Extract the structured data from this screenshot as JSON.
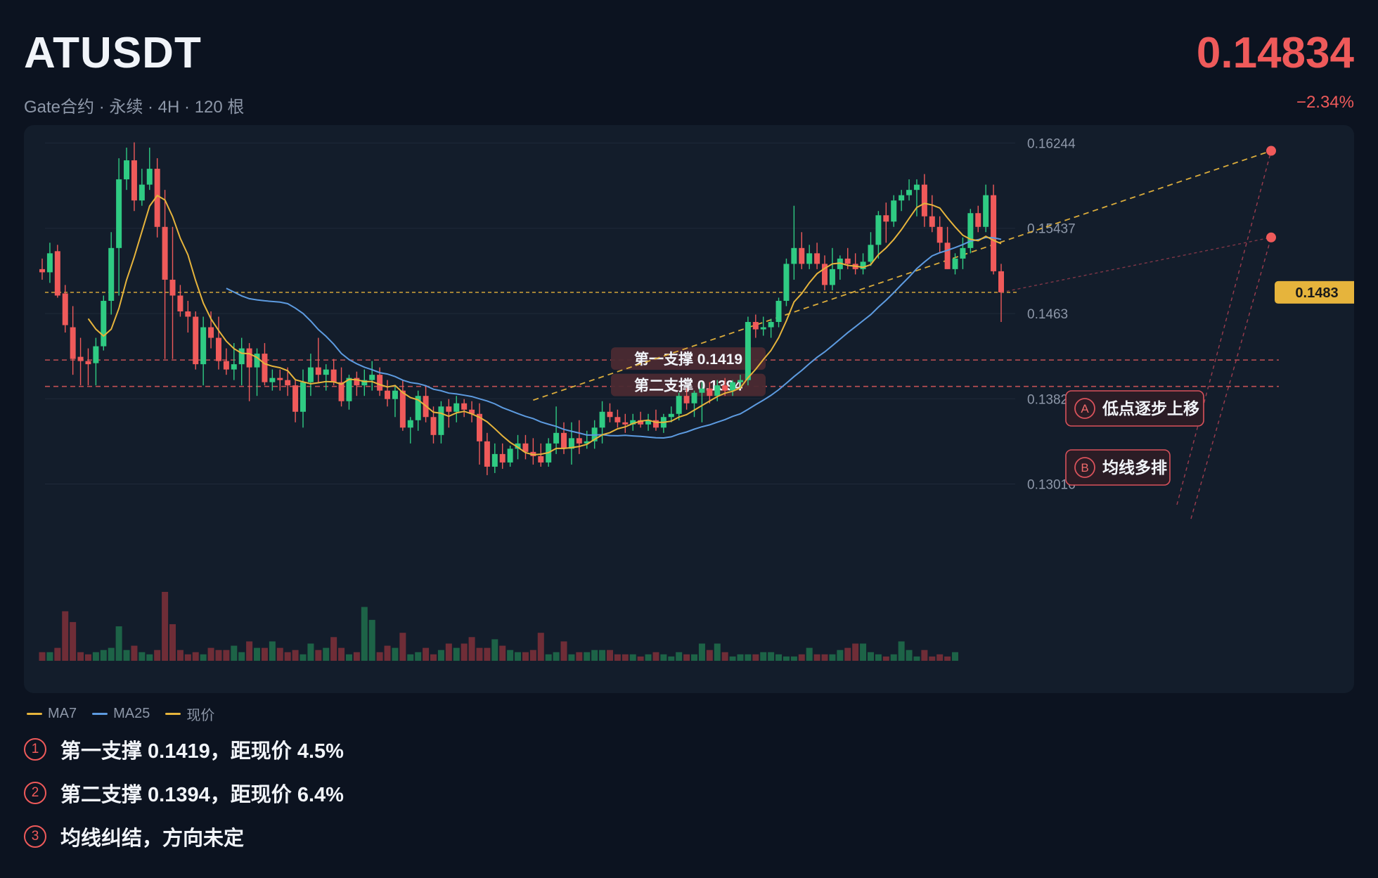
{
  "header": {
    "symbol": "ATUSDT",
    "subtitle": "Gate合约 · 永续 · 4H · 120 根",
    "price": "0.14834",
    "change": "−2.34%"
  },
  "colors": {
    "up": "#2fcb83",
    "down": "#ef5a5a",
    "ma7": "#e6b43c",
    "ma25": "#5d9be0",
    "current_price": "#e6b43c",
    "support": "#e05a5a",
    "trendline": "#e6b43c"
  },
  "legend": [
    {
      "label": "MA7",
      "color": "#e6b43c"
    },
    {
      "label": "MA25",
      "color": "#5d9be0"
    },
    {
      "label": "现价",
      "color": "#e6b43c"
    }
  ],
  "notes": [
    {
      "num": "1",
      "text": "第一支撑 0.1419，距现价 4.5%"
    },
    {
      "num": "2",
      "text": "第二支撑 0.1394，距现价 6.4%"
    },
    {
      "num": "3",
      "text": "均线纠结，方向未定"
    }
  ],
  "chart_data": {
    "type": "candlestick",
    "bars": 120,
    "y_ticks": [
      "0.16244",
      "0.15437",
      "0.1463",
      "0.13823",
      "0.13016"
    ],
    "ylim": [
      0.1282,
      0.1636
    ],
    "current_price": {
      "value": 0.1483,
      "label": "0.1483"
    },
    "supports": [
      {
        "label": "第一支撑 0.1419",
        "value": 0.1419
      },
      {
        "label": "第二支撑 0.1394",
        "value": 0.1394
      }
    ],
    "annotations": [
      {
        "letter": "A",
        "text": "低点逐步上移"
      },
      {
        "letter": "B",
        "text": "均线多排"
      }
    ],
    "trendline": {
      "from": {
        "bar": 64,
        "price": 0.1381
      },
      "to": {
        "bar": 119,
        "price": 0.1617
      }
    },
    "close_markers": [
      0.1617,
      0.1535
    ],
    "candles": [
      [
        0.1505,
        0.1515,
        0.1495,
        0.1502
      ],
      [
        0.1502,
        0.153,
        0.1492,
        0.152
      ],
      [
        0.1522,
        0.1528,
        0.1478,
        0.148
      ],
      [
        0.1482,
        0.149,
        0.1445,
        0.1452
      ],
      [
        0.145,
        0.147,
        0.1405,
        0.142
      ],
      [
        0.1422,
        0.144,
        0.1395,
        0.1418
      ],
      [
        0.1418,
        0.143,
        0.1395,
        0.1415
      ],
      [
        0.1416,
        0.144,
        0.1395,
        0.1432
      ],
      [
        0.1432,
        0.148,
        0.1428,
        0.1475
      ],
      [
        0.1475,
        0.154,
        0.1462,
        0.1525
      ],
      [
        0.1525,
        0.161,
        0.148,
        0.159
      ],
      [
        0.159,
        0.162,
        0.158,
        0.1608
      ],
      [
        0.1608,
        0.1625,
        0.156,
        0.157
      ],
      [
        0.157,
        0.16,
        0.1565,
        0.1585
      ],
      [
        0.1585,
        0.162,
        0.158,
        0.16
      ],
      [
        0.16,
        0.161,
        0.1535,
        0.1545
      ],
      [
        0.1545,
        0.158,
        0.142,
        0.1495
      ],
      [
        0.1495,
        0.1545,
        0.142,
        0.148
      ],
      [
        0.148,
        0.149,
        0.146,
        0.1465
      ],
      [
        0.1465,
        0.1475,
        0.1445,
        0.146
      ],
      [
        0.146,
        0.1465,
        0.141,
        0.1415
      ],
      [
        0.1415,
        0.146,
        0.1395,
        0.145
      ],
      [
        0.145,
        0.1465,
        0.143,
        0.144
      ],
      [
        0.144,
        0.146,
        0.141,
        0.1418
      ],
      [
        0.1418,
        0.143,
        0.1405,
        0.141
      ],
      [
        0.141,
        0.1435,
        0.14,
        0.1415
      ],
      [
        0.1415,
        0.144,
        0.1395,
        0.143
      ],
      [
        0.143,
        0.1435,
        0.138,
        0.1412
      ],
      [
        0.1412,
        0.143,
        0.1385,
        0.1425
      ],
      [
        0.1425,
        0.1435,
        0.1395,
        0.1398
      ],
      [
        0.1398,
        0.141,
        0.139,
        0.1402
      ],
      [
        0.1402,
        0.141,
        0.139,
        0.14
      ],
      [
        0.14,
        0.1412,
        0.1385,
        0.1395
      ],
      [
        0.1395,
        0.14,
        0.136,
        0.137
      ],
      [
        0.137,
        0.141,
        0.1355,
        0.1398
      ],
      [
        0.1398,
        0.1425,
        0.1385,
        0.1412
      ],
      [
        0.1412,
        0.144,
        0.1398,
        0.1405
      ],
      [
        0.1405,
        0.1415,
        0.139,
        0.141
      ],
      [
        0.141,
        0.142,
        0.1395,
        0.1398
      ],
      [
        0.1398,
        0.1412,
        0.1375,
        0.138
      ],
      [
        0.138,
        0.1405,
        0.1372,
        0.1402
      ],
      [
        0.1402,
        0.1408,
        0.1385,
        0.1395
      ],
      [
        0.1395,
        0.141,
        0.1385,
        0.14
      ],
      [
        0.14,
        0.1418,
        0.139,
        0.1405
      ],
      [
        0.1405,
        0.1412,
        0.1385,
        0.139
      ],
      [
        0.139,
        0.14,
        0.1375,
        0.1382
      ],
      [
        0.1382,
        0.1395,
        0.1365,
        0.139
      ],
      [
        0.139,
        0.14,
        0.1352,
        0.1355
      ],
      [
        0.1355,
        0.1365,
        0.134,
        0.1362
      ],
      [
        0.1362,
        0.139,
        0.1352,
        0.1385
      ],
      [
        0.1385,
        0.1395,
        0.136,
        0.1365
      ],
      [
        0.1365,
        0.1375,
        0.134,
        0.1348
      ],
      [
        0.1348,
        0.138,
        0.134,
        0.1375
      ],
      [
        0.1375,
        0.1382,
        0.1355,
        0.137
      ],
      [
        0.137,
        0.1385,
        0.136,
        0.1378
      ],
      [
        0.1378,
        0.1382,
        0.1365,
        0.1372
      ],
      [
        0.1372,
        0.138,
        0.136,
        0.1368
      ],
      [
        0.1368,
        0.1378,
        0.132,
        0.1342
      ],
      [
        0.1342,
        0.135,
        0.131,
        0.1318
      ],
      [
        0.1318,
        0.134,
        0.1312,
        0.133
      ],
      [
        0.133,
        0.134,
        0.1316,
        0.1322
      ],
      [
        0.1322,
        0.1338,
        0.1318,
        0.1335
      ],
      [
        0.1335,
        0.1348,
        0.1325,
        0.134
      ],
      [
        0.134,
        0.1348,
        0.1325,
        0.1332
      ],
      [
        0.1332,
        0.1345,
        0.132,
        0.1328
      ],
      [
        0.1328,
        0.134,
        0.1318,
        0.1322
      ],
      [
        0.1322,
        0.1345,
        0.1318,
        0.134
      ],
      [
        0.134,
        0.1375,
        0.133,
        0.135
      ],
      [
        0.135,
        0.136,
        0.133,
        0.1335
      ],
      [
        0.1335,
        0.136,
        0.132,
        0.1345
      ],
      [
        0.1345,
        0.1362,
        0.133,
        0.134
      ],
      [
        0.134,
        0.1352,
        0.1335,
        0.1342
      ],
      [
        0.1342,
        0.1362,
        0.1335,
        0.1355
      ],
      [
        0.1355,
        0.138,
        0.134,
        0.137
      ],
      [
        0.137,
        0.1378,
        0.136,
        0.1365
      ],
      [
        0.1365,
        0.1372,
        0.1355,
        0.136
      ],
      [
        0.136,
        0.1368,
        0.135,
        0.1358
      ],
      [
        0.1358,
        0.1368,
        0.1352,
        0.1362
      ],
      [
        0.1362,
        0.137,
        0.1355,
        0.1358
      ],
      [
        0.1358,
        0.1368,
        0.1352,
        0.1362
      ],
      [
        0.1362,
        0.1372,
        0.1352,
        0.1355
      ],
      [
        0.1355,
        0.1368,
        0.135,
        0.1365
      ],
      [
        0.1365,
        0.1375,
        0.136,
        0.1368
      ],
      [
        0.1368,
        0.1388,
        0.1362,
        0.1385
      ],
      [
        0.1385,
        0.1392,
        0.1372,
        0.1378
      ],
      [
        0.1378,
        0.139,
        0.1365,
        0.1388
      ],
      [
        0.1388,
        0.1398,
        0.136,
        0.1392
      ],
      [
        0.1392,
        0.1398,
        0.1378,
        0.1385
      ],
      [
        0.1385,
        0.14,
        0.138,
        0.1395
      ],
      [
        0.1395,
        0.1402,
        0.1385,
        0.139
      ],
      [
        0.139,
        0.14,
        0.1385,
        0.1398
      ],
      [
        0.1398,
        0.1405,
        0.1392,
        0.14
      ],
      [
        0.14,
        0.146,
        0.1395,
        0.1455
      ],
      [
        0.1455,
        0.1462,
        0.144,
        0.1448
      ],
      [
        0.1448,
        0.146,
        0.1442,
        0.145
      ],
      [
        0.145,
        0.1458,
        0.144,
        0.1455
      ],
      [
        0.1455,
        0.1478,
        0.145,
        0.1475
      ],
      [
        0.1475,
        0.1515,
        0.147,
        0.151
      ],
      [
        0.151,
        0.1565,
        0.1495,
        0.1525
      ],
      [
        0.1525,
        0.154,
        0.1505,
        0.151
      ],
      [
        0.151,
        0.1528,
        0.1505,
        0.152
      ],
      [
        0.152,
        0.153,
        0.1505,
        0.151
      ],
      [
        0.151,
        0.1518,
        0.1485,
        0.149
      ],
      [
        0.149,
        0.1525,
        0.1485,
        0.1505
      ],
      [
        0.1505,
        0.1518,
        0.1495,
        0.1515
      ],
      [
        0.1515,
        0.1525,
        0.1505,
        0.151
      ],
      [
        0.151,
        0.152,
        0.15,
        0.1505
      ],
      [
        0.1505,
        0.152,
        0.15,
        0.1512
      ],
      [
        0.1512,
        0.154,
        0.1508,
        0.1528
      ],
      [
        0.1528,
        0.156,
        0.1515,
        0.1556
      ],
      [
        0.1556,
        0.1568,
        0.153,
        0.155
      ],
      [
        0.155,
        0.1575,
        0.1545,
        0.157
      ],
      [
        0.157,
        0.158,
        0.156,
        0.1575
      ],
      [
        0.1575,
        0.159,
        0.157,
        0.158
      ],
      [
        0.158,
        0.159,
        0.1555,
        0.1585
      ],
      [
        0.1585,
        0.1595,
        0.1545,
        0.1555
      ],
      [
        0.1555,
        0.1575,
        0.154,
        0.1545
      ],
      [
        0.1545,
        0.1555,
        0.152,
        0.153
      ],
      [
        0.153,
        0.1545,
        0.1505,
        0.1505
      ],
      [
        0.1505,
        0.152,
        0.15,
        0.1515
      ],
      [
        0.1515,
        0.1535,
        0.1505,
        0.1525
      ],
      [
        0.1525,
        0.1562,
        0.152,
        0.1558
      ],
      [
        0.1558,
        0.1565,
        0.154,
        0.1545
      ],
      [
        0.1545,
        0.1585,
        0.154,
        0.1575
      ],
      [
        0.1575,
        0.1585,
        0.15,
        0.1503
      ],
      [
        0.1503,
        0.151,
        0.1455,
        0.1483
      ]
    ],
    "volume": [
      4,
      4,
      6,
      23,
      18,
      4,
      3,
      4,
      5,
      6,
      16,
      5,
      7,
      4,
      3,
      5,
      32,
      17,
      5,
      3,
      4,
      3,
      6,
      5,
      5,
      7,
      4,
      9,
      6,
      6,
      9,
      6,
      4,
      5,
      3,
      8,
      5,
      6,
      11,
      6,
      3,
      4,
      25,
      19,
      4,
      7,
      6,
      13,
      3,
      4,
      6,
      3,
      5,
      8,
      6,
      8,
      11,
      6,
      6,
      10,
      7,
      5,
      4,
      4,
      5,
      13,
      3,
      4,
      9,
      3,
      4,
      4,
      5,
      5,
      5,
      3,
      3,
      3,
      2,
      3,
      4,
      3,
      2,
      4,
      3,
      3,
      8,
      5,
      8,
      4,
      2,
      3,
      3,
      3,
      4,
      4,
      3,
      2,
      2,
      3,
      6,
      3,
      3,
      3,
      5,
      6,
      8,
      8,
      4,
      3,
      2,
      3,
      9,
      5,
      2,
      5,
      2,
      3,
      2,
      4
    ]
  }
}
